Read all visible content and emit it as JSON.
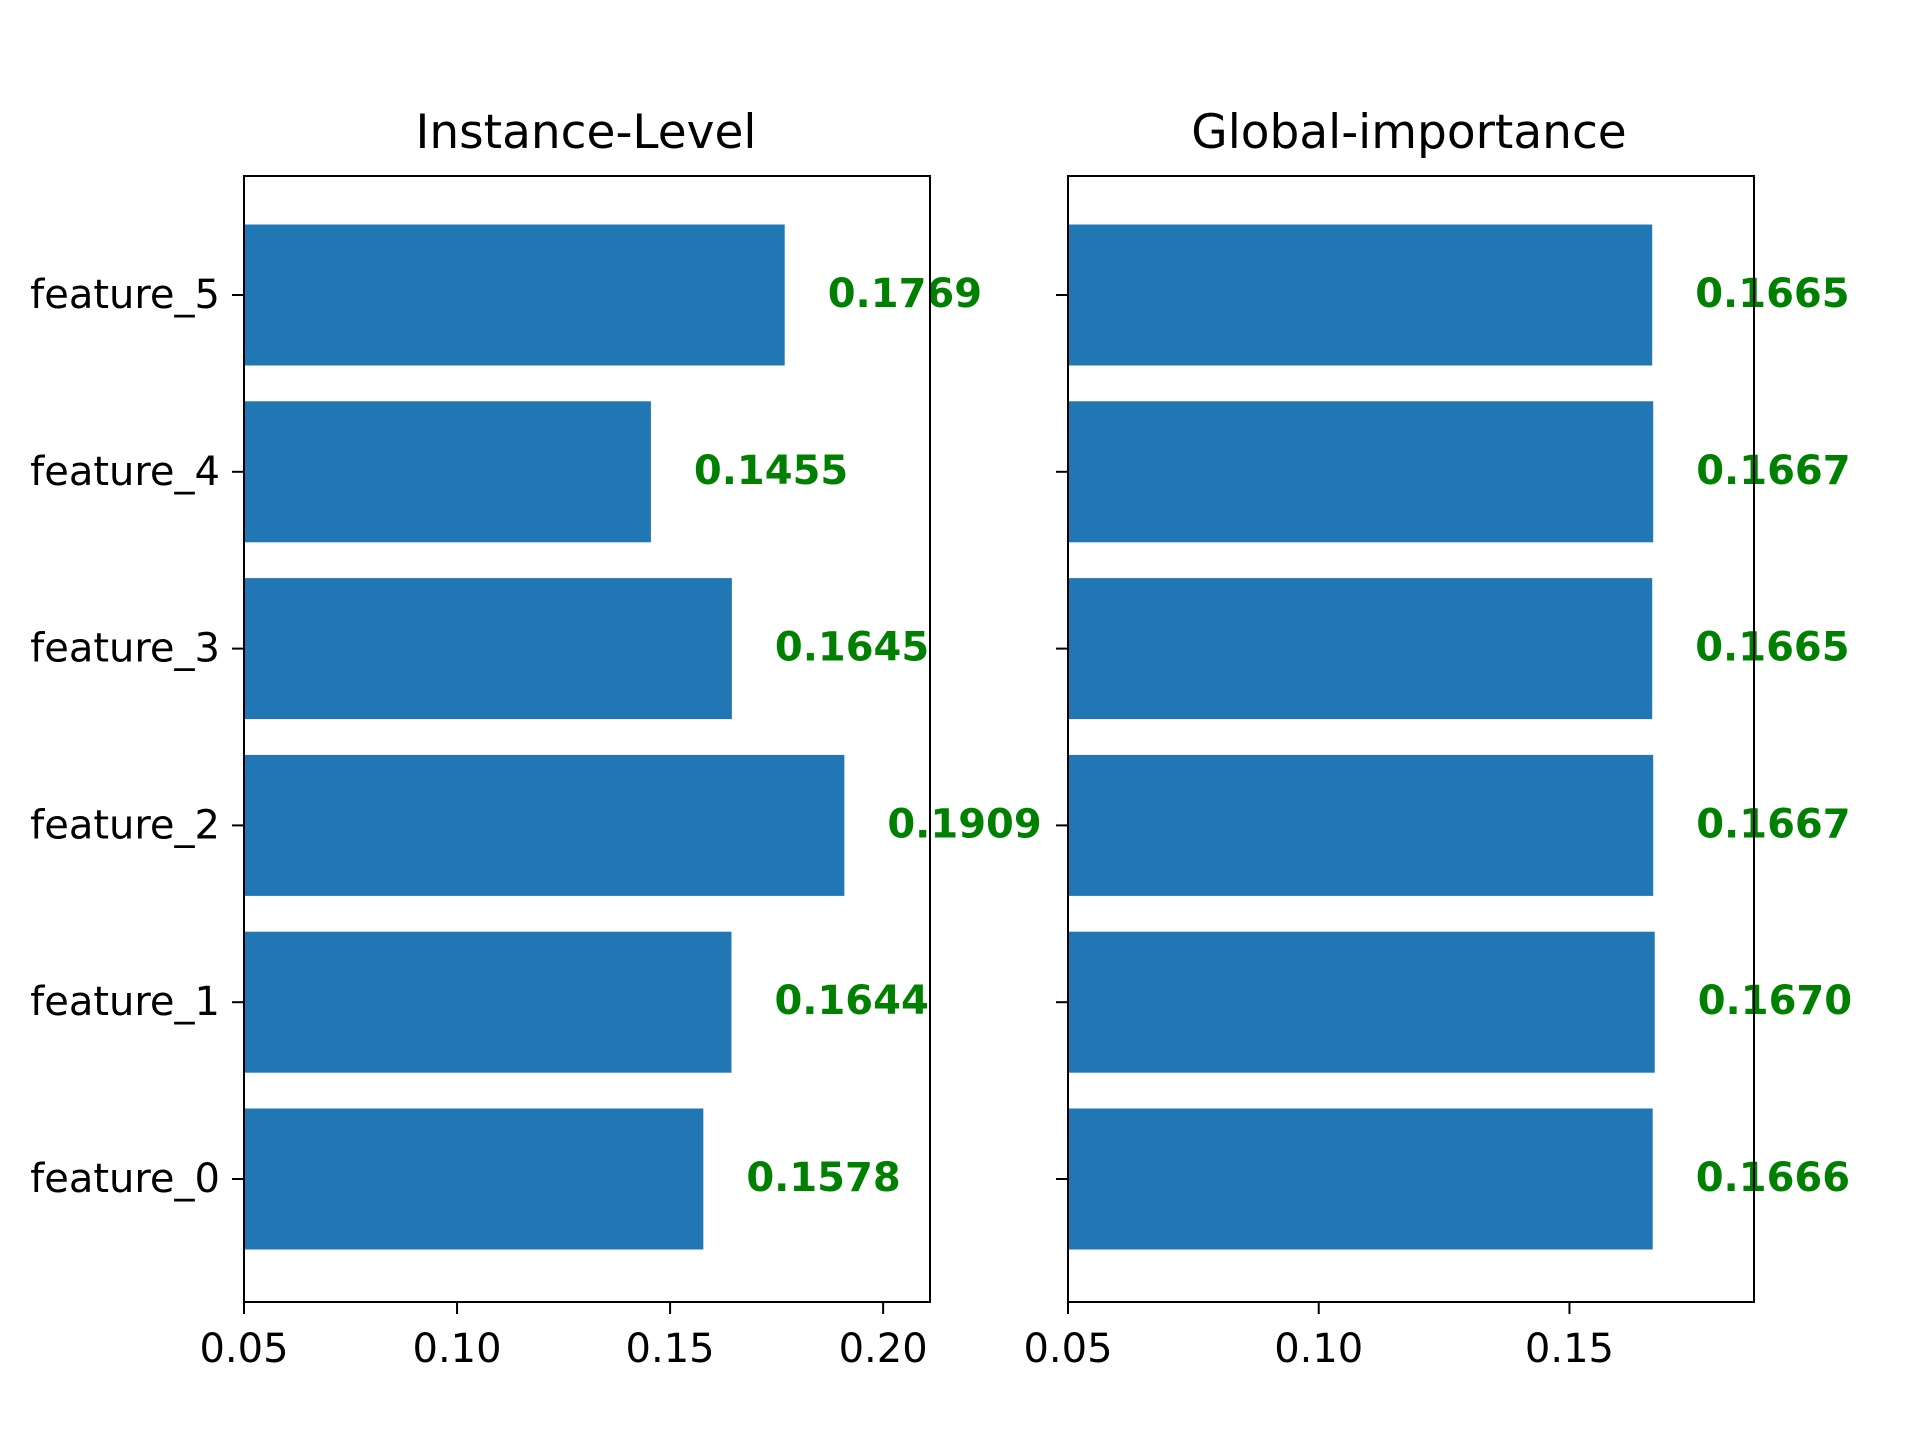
{
  "chart_data": [
    {
      "type": "bar",
      "orientation": "horizontal",
      "title": "Instance-Level",
      "categories": [
        "feature_0",
        "feature_1",
        "feature_2",
        "feature_3",
        "feature_4",
        "feature_5"
      ],
      "values": [
        0.1578,
        0.1644,
        0.1909,
        0.1645,
        0.1455,
        0.1769
      ],
      "value_labels": [
        "0.1578",
        "0.1644",
        "0.1909",
        "0.1645",
        "0.1455",
        "0.1769"
      ],
      "xlim": [
        0.05,
        0.211
      ],
      "xticks": [
        "0.05",
        "0.10",
        "0.15",
        "0.20"
      ],
      "show_category_labels": true,
      "xlabel": "",
      "ylabel": "",
      "grid": false
    },
    {
      "type": "bar",
      "orientation": "horizontal",
      "title": "Global-importance",
      "categories": [
        "feature_0",
        "feature_1",
        "feature_2",
        "feature_3",
        "feature_4",
        "feature_5"
      ],
      "values": [
        0.1666,
        0.167,
        0.1667,
        0.1665,
        0.1667,
        0.1665
      ],
      "value_labels": [
        "0.1666",
        "0.1670",
        "0.1667",
        "0.1665",
        "0.1667",
        "0.1665"
      ],
      "xlim": [
        0.05,
        0.1868
      ],
      "xticks": [
        "0.05",
        "0.10",
        "0.15"
      ],
      "show_category_labels": false,
      "xlabel": "",
      "ylabel": "",
      "grid": false
    }
  ],
  "colors": {
    "bar": "#2077b4",
    "value_label": "#008000",
    "axes": "#000000",
    "background": "#ffffff"
  }
}
